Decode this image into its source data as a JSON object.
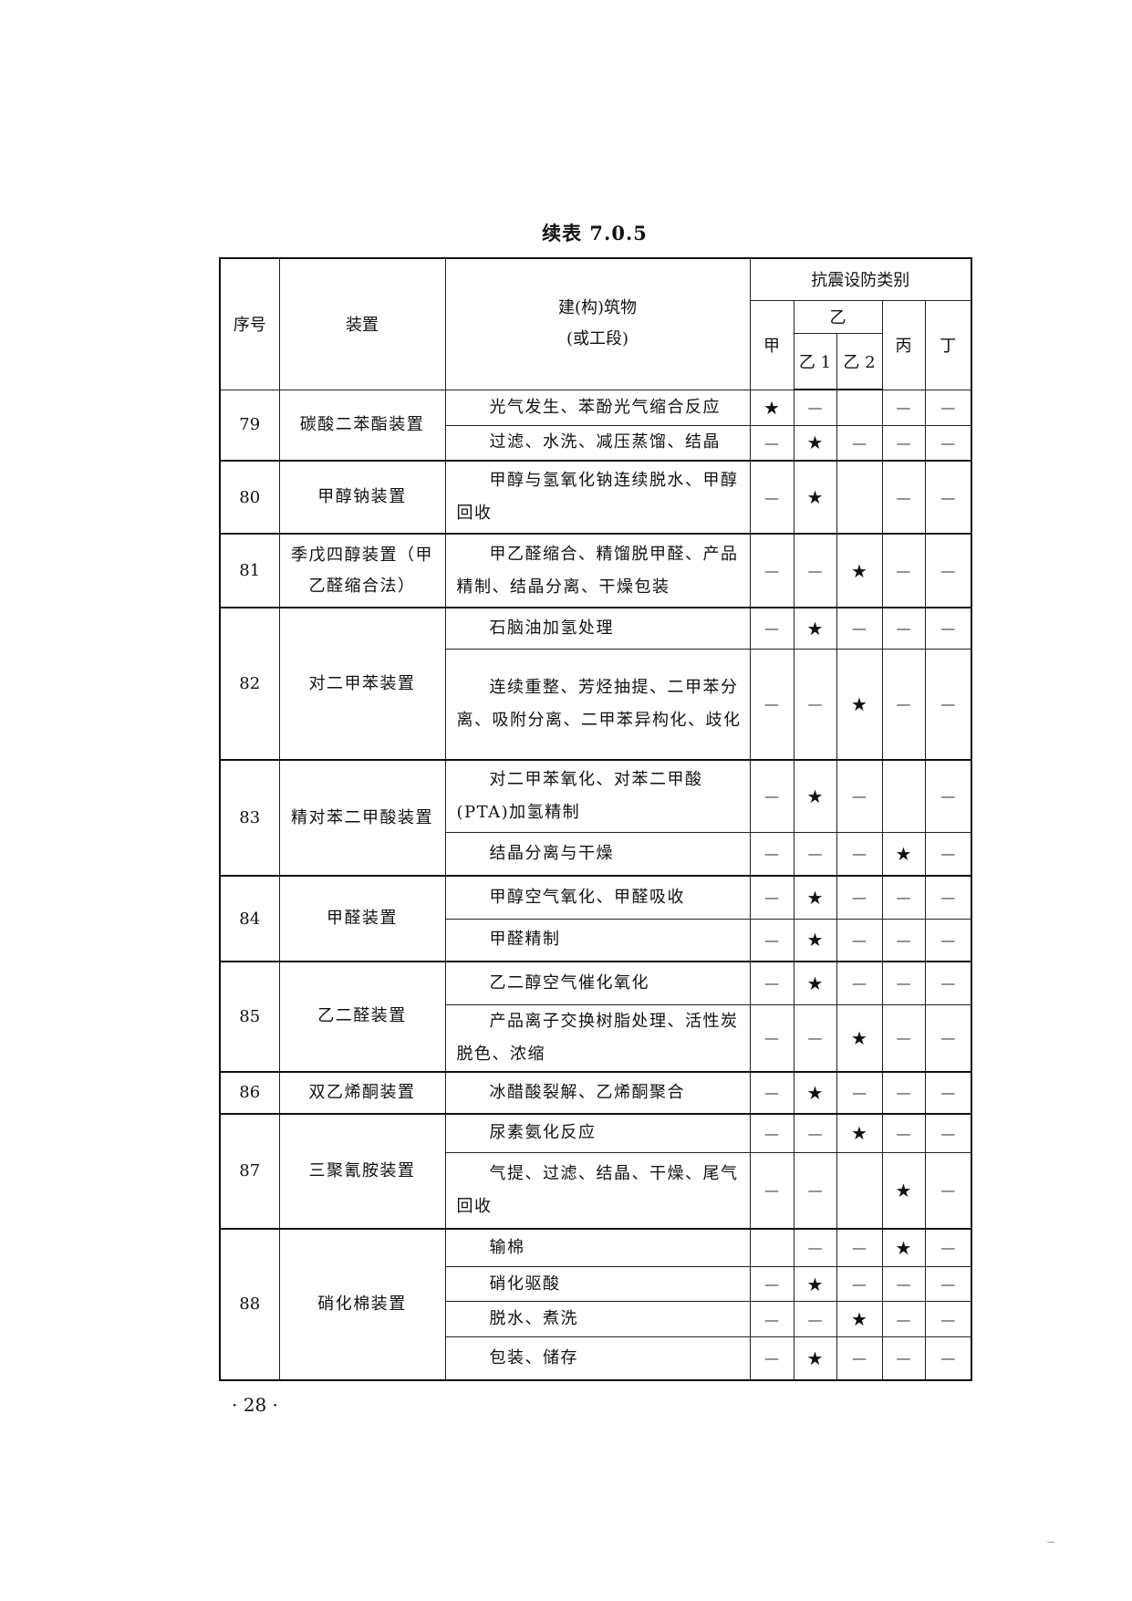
{
  "title": "续表 7.0.5",
  "header": {
    "no": "序号",
    "device": "装置",
    "building_line1": "建(构)筑物",
    "building_line2": "(或工段)",
    "category": "抗震设防类别",
    "jia": "甲",
    "yi": "乙",
    "yi1": "乙 1",
    "yi2": "乙 2",
    "bing": "丙",
    "ding": "丁"
  },
  "symbols": {
    "star": "★",
    "dash": "—"
  },
  "rows": [
    {
      "no": "79",
      "device": "碳酸二苯酯装置",
      "items": [
        {
          "text": "光气发生、苯酚光气缩合反应",
          "marks": [
            "star",
            "dash",
            "",
            "dash",
            "dash"
          ]
        },
        {
          "text": "过滤、水洗、减压蒸馏、结晶",
          "marks": [
            "dash",
            "star",
            "dash",
            "dash",
            "dash"
          ]
        }
      ]
    },
    {
      "no": "80",
      "device": "甲醇钠装置",
      "items": [
        {
          "text": "甲醇与氢氧化钠连续脱水、甲醇回收",
          "marks": [
            "dash",
            "star",
            "",
            "dash",
            "dash"
          ]
        }
      ]
    },
    {
      "no": "81",
      "device": "季戊四醇装置（甲乙醛缩合法）",
      "items": [
        {
          "text": "甲乙醛缩合、精馏脱甲醛、产品精制、结晶分离、干燥包装",
          "marks": [
            "dash",
            "dash",
            "star",
            "dash",
            "dash"
          ]
        }
      ]
    },
    {
      "no": "82",
      "device": "对二甲苯装置",
      "items": [
        {
          "text": "石脑油加氢处理",
          "marks": [
            "dash",
            "star",
            "dash",
            "dash",
            "dash"
          ]
        },
        {
          "text": "连续重整、芳烃抽提、二甲苯分离、吸附分离、二甲苯异构化、歧化",
          "marks": [
            "dash",
            "dash",
            "star",
            "dash",
            "dash"
          ]
        }
      ]
    },
    {
      "no": "83",
      "device": "精对苯二甲酸装置",
      "items": [
        {
          "text": "对二甲苯氧化、对苯二甲酸(PTA)加氢精制",
          "marks": [
            "dash",
            "star",
            "dash",
            "",
            "dash"
          ]
        },
        {
          "text": "结晶分离与干燥",
          "marks": [
            "dash",
            "dash",
            "dash",
            "star",
            "dash"
          ]
        }
      ]
    },
    {
      "no": "84",
      "device": "甲醛装置",
      "items": [
        {
          "text": "甲醇空气氧化、甲醛吸收",
          "marks": [
            "dash",
            "star",
            "dash",
            "dash",
            "dash"
          ]
        },
        {
          "text": "甲醛精制",
          "marks": [
            "dash",
            "star",
            "dash",
            "dash",
            "dash"
          ]
        }
      ]
    },
    {
      "no": "85",
      "device": "乙二醛装置",
      "items": [
        {
          "text": "乙二醇空气催化氧化",
          "marks": [
            "dash",
            "star",
            "dash",
            "dash",
            "dash"
          ]
        },
        {
          "text": "产品离子交换树脂处理、活性炭脱色、浓缩",
          "marks": [
            "dash",
            "dash",
            "star",
            "dash",
            "dash"
          ]
        }
      ]
    },
    {
      "no": "86",
      "device": "双乙烯酮装置",
      "items": [
        {
          "text": "冰醋酸裂解、乙烯酮聚合",
          "marks": [
            "dash",
            "star",
            "dash",
            "dash",
            "dash"
          ]
        }
      ]
    },
    {
      "no": "87",
      "device": "三聚氰胺装置",
      "items": [
        {
          "text": "尿素氨化反应",
          "marks": [
            "dash",
            "dash",
            "star",
            "dash",
            "dash"
          ]
        },
        {
          "text": "气提、过滤、结晶、干燥、尾气回收",
          "marks": [
            "dash",
            "dash",
            "",
            "star",
            "dash"
          ]
        }
      ]
    },
    {
      "no": "88",
      "device": "硝化棉装置",
      "items": [
        {
          "text": "输棉",
          "marks": [
            "",
            "dash",
            "dash",
            "star",
            "dash"
          ]
        },
        {
          "text": "硝化驱酸",
          "marks": [
            "dash",
            "star",
            "dash",
            "dash",
            "dash"
          ]
        },
        {
          "text": "脱水、煮洗",
          "marks": [
            "dash",
            "dash",
            "star",
            "dash",
            "dash"
          ]
        },
        {
          "text": "包装、储存",
          "marks": [
            "dash",
            "star",
            "dash",
            "dash",
            "dash"
          ]
        }
      ]
    }
  ],
  "page_number": "· 28 ·"
}
